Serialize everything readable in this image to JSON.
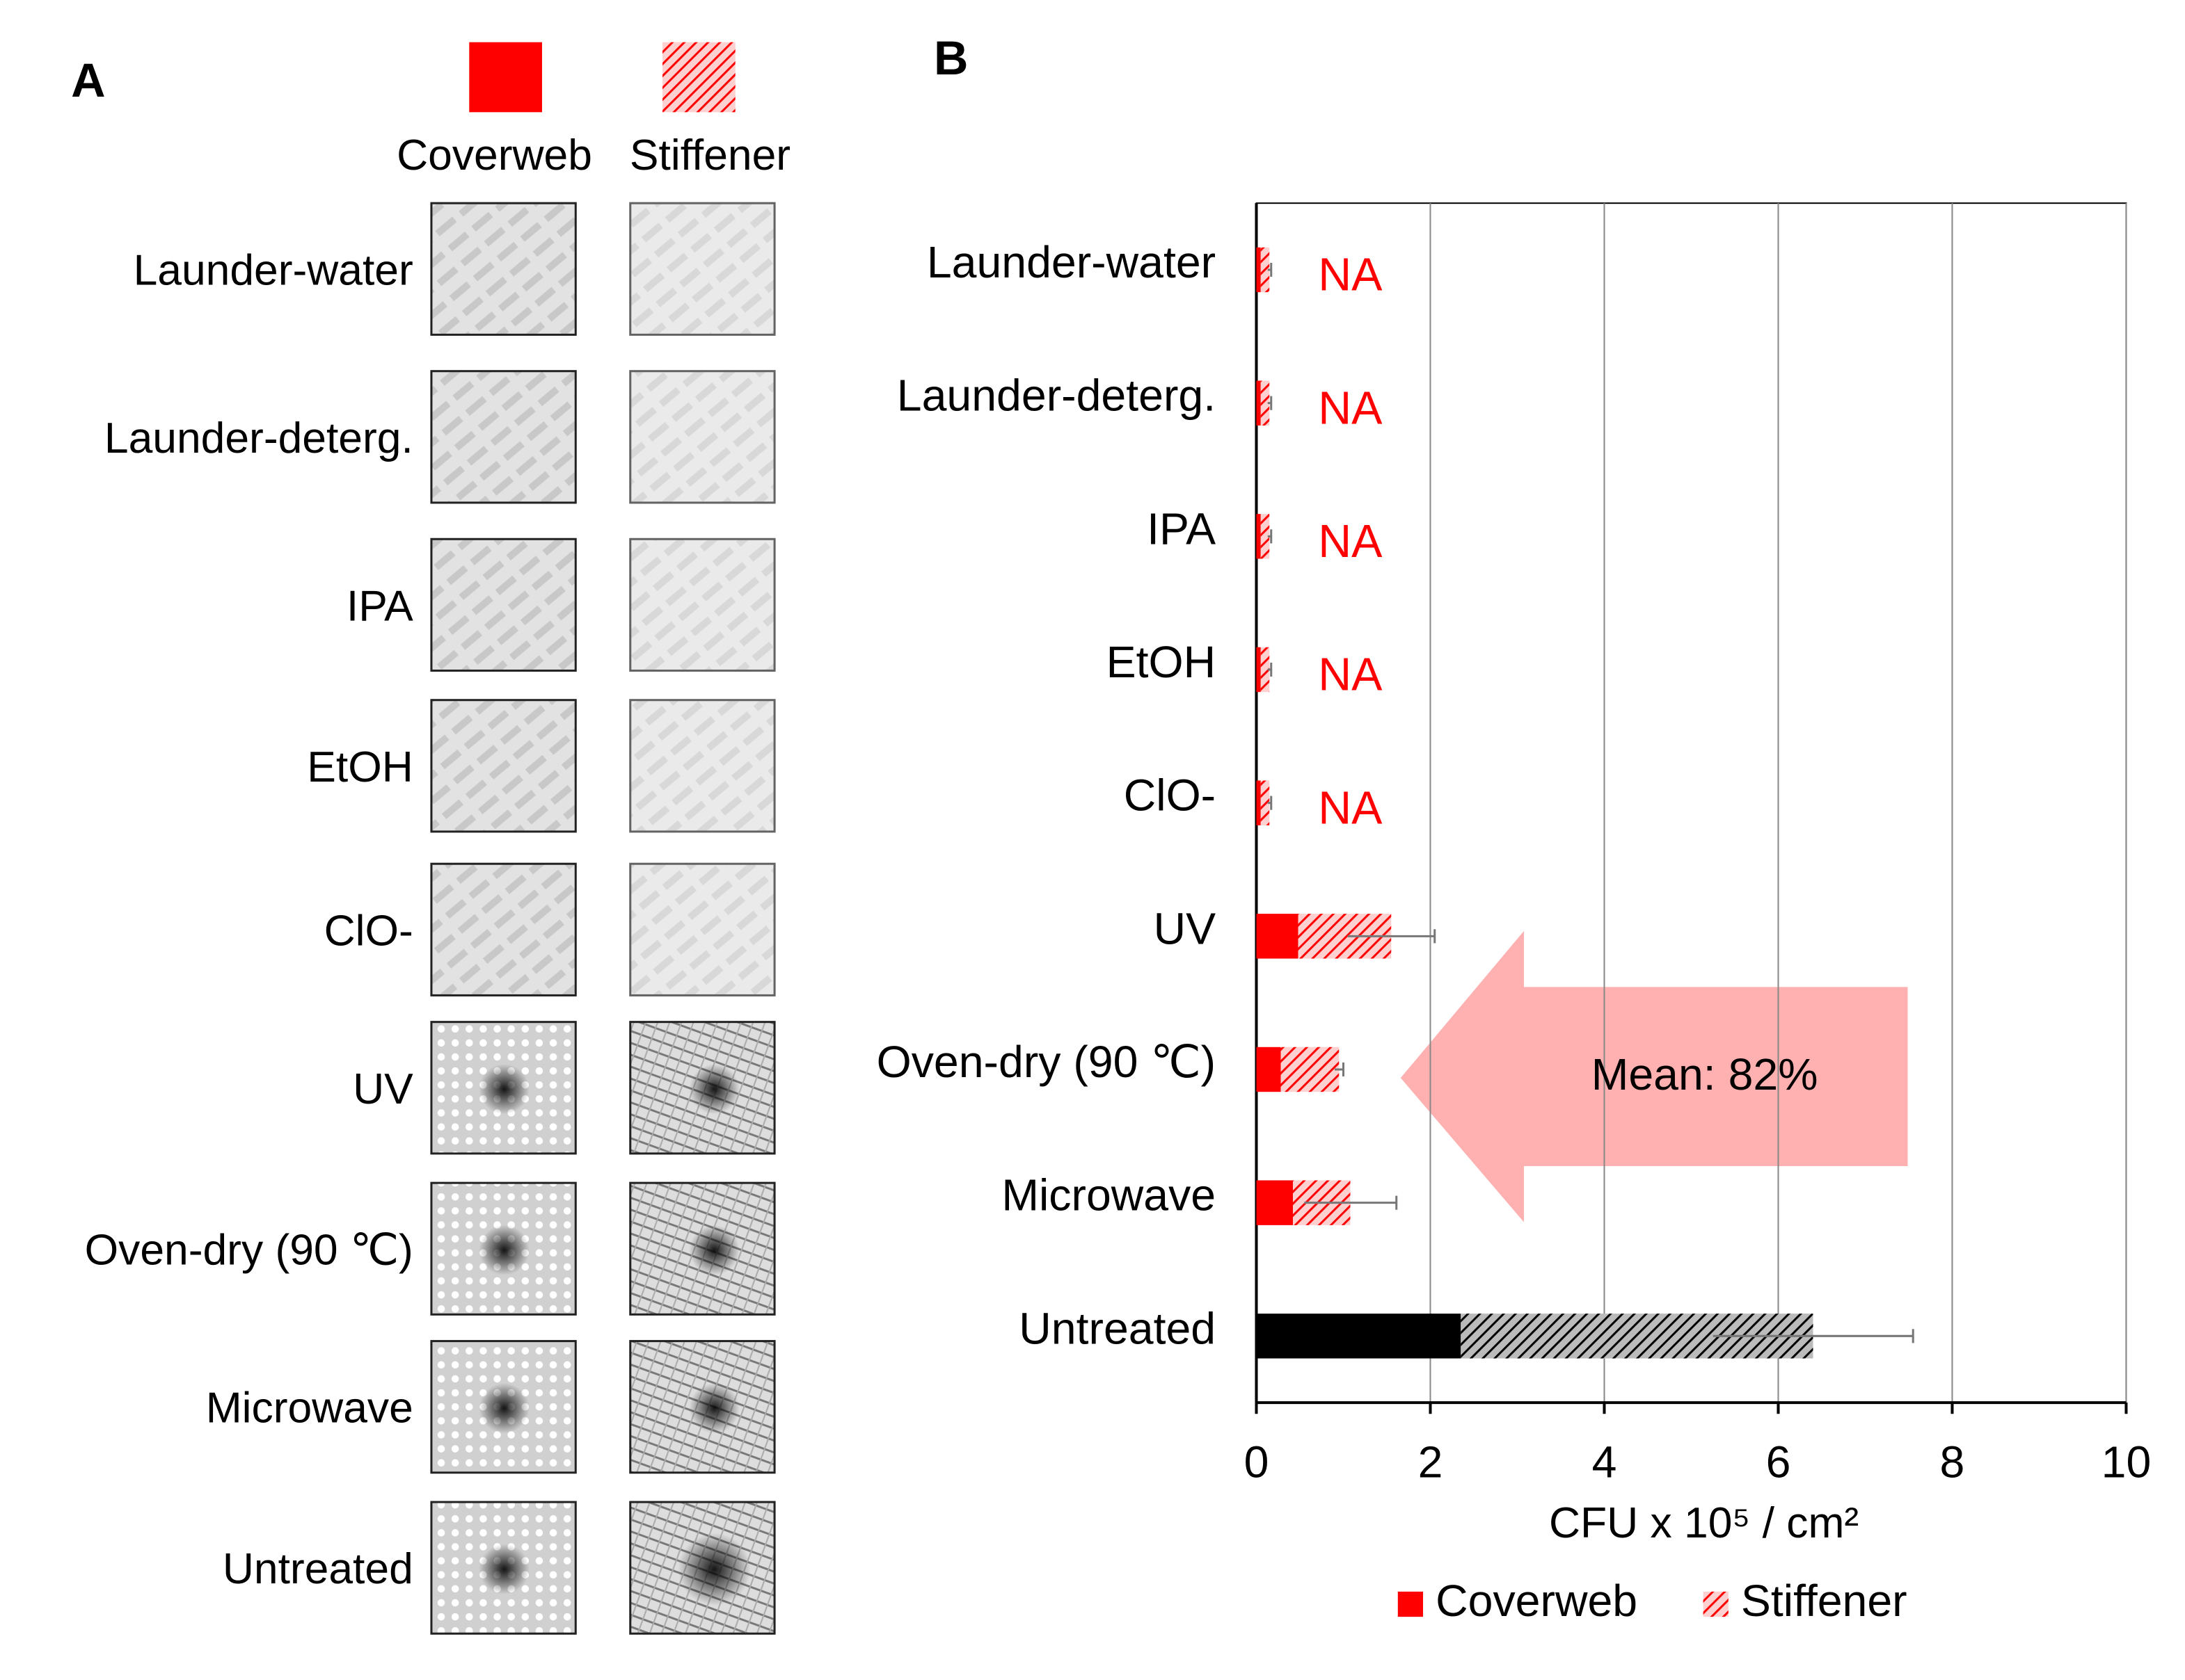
{
  "panel_a": {
    "label": "A",
    "columns": [
      "Coverweb",
      "Stiffener"
    ],
    "rows": [
      "Launder-water",
      "Launder-deterg.",
      "IPA",
      "EtOH",
      "ClO-",
      "UV",
      "Oven-dry (90 ℃)",
      "Microwave",
      "Untreated"
    ]
  },
  "chart_data": {
    "type": "stacked_barh",
    "panel_label": "B",
    "categories": [
      "Launder-water",
      "Launder-deterg.",
      "IPA",
      "EtOH",
      "ClO-",
      "UV",
      "Oven-dry (90 ℃)",
      "Microwave",
      "Untreated"
    ],
    "series": [
      {
        "name": "Coverweb",
        "color": "#ff0000",
        "colors": [
          "#ff0000",
          "#ff0000",
          "#ff0000",
          "#ff0000",
          "#ff0000",
          "#ff0000",
          "#ff0000",
          "#ff0000",
          "#000000"
        ],
        "values": [
          0.05,
          0.05,
          0.05,
          0.05,
          0.05,
          0.48,
          0.28,
          0.42,
          2.35
        ]
      },
      {
        "name": "Stiffener",
        "color": "#ff0000",
        "colors": [
          "#ff0000",
          "#ff0000",
          "#ff0000",
          "#ff0000",
          "#ff0000",
          "#ff0000",
          "#ff0000",
          "#ff0000",
          "#000000"
        ],
        "hatch": true,
        "values": [
          0.1,
          0.1,
          0.1,
          0.1,
          0.1,
          1.07,
          0.67,
          0.66,
          4.05
        ],
        "errors": [
          0.02,
          0.02,
          0.02,
          0.02,
          0.02,
          0.5,
          0.05,
          0.53,
          1.15
        ]
      }
    ],
    "xlabel": "CFU x 10⁵ / cm²",
    "xlim": [
      0,
      10
    ],
    "xticks": [
      0,
      2,
      4,
      6,
      8,
      10
    ],
    "grid": true,
    "legend": "bottom",
    "annotations": [
      "NA",
      "NA",
      "NA",
      "NA",
      "NA",
      "Mean: 82%"
    ]
  }
}
